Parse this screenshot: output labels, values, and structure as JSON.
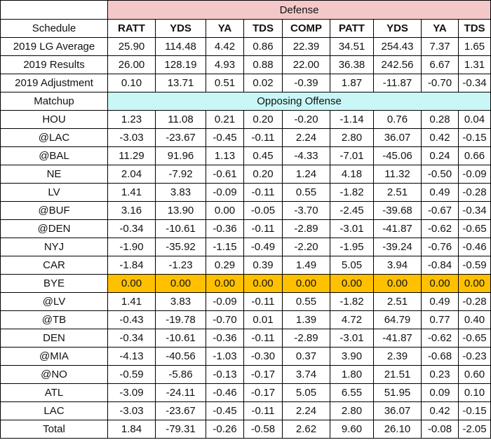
{
  "header": {
    "defense_label": "Defense",
    "schedule_label": "Schedule",
    "matchup_label": "Matchup",
    "offense_label": "Opposing Offense",
    "columns": [
      "RATT",
      "YDS",
      "YA",
      "TDS",
      "COMP",
      "PATT",
      "YDS",
      "YA",
      "TDS"
    ]
  },
  "summary_rows": [
    {
      "label": "2019 LG Average",
      "values": [
        "25.90",
        "114.48",
        "4.42",
        "0.86",
        "22.39",
        "34.51",
        "254.43",
        "7.37",
        "1.65"
      ]
    },
    {
      "label": "2019 Results",
      "values": [
        "26.00",
        "128.19",
        "4.93",
        "0.88",
        "22.00",
        "36.38",
        "242.56",
        "6.67",
        "1.31"
      ]
    },
    {
      "label": "2019 Adjustment",
      "values": [
        "0.10",
        "13.71",
        "0.51",
        "0.02",
        "-0.39",
        "1.87",
        "-11.87",
        "-0.70",
        "-0.34"
      ]
    }
  ],
  "matchups": [
    {
      "label": "HOU",
      "values": [
        "1.23",
        "11.08",
        "0.21",
        "0.20",
        "-0.20",
        "-1.14",
        "0.76",
        "0.28",
        "0.04"
      ]
    },
    {
      "label": "@LAC",
      "values": [
        "-3.03",
        "-23.67",
        "-0.45",
        "-0.11",
        "2.24",
        "2.80",
        "36.07",
        "0.42",
        "-0.15"
      ]
    },
    {
      "label": "@BAL",
      "values": [
        "11.29",
        "91.96",
        "1.13",
        "0.45",
        "-4.33",
        "-7.01",
        "-45.06",
        "0.24",
        "0.66"
      ]
    },
    {
      "label": "NE",
      "values": [
        "2.04",
        "-7.92",
        "-0.61",
        "0.20",
        "1.24",
        "4.18",
        "11.32",
        "-0.50",
        "-0.09"
      ]
    },
    {
      "label": "LV",
      "values": [
        "1.41",
        "3.83",
        "-0.09",
        "-0.11",
        "0.55",
        "-1.82",
        "2.51",
        "0.49",
        "-0.28"
      ]
    },
    {
      "label": "@BUF",
      "values": [
        "3.16",
        "13.90",
        "0.00",
        "-0.05",
        "-3.70",
        "-2.45",
        "-39.68",
        "-0.67",
        "-0.34"
      ]
    },
    {
      "label": "@DEN",
      "values": [
        "-0.34",
        "-10.61",
        "-0.36",
        "-0.11",
        "-2.89",
        "-3.01",
        "-41.87",
        "-0.62",
        "-0.65"
      ]
    },
    {
      "label": "NYJ",
      "values": [
        "-1.90",
        "-35.92",
        "-1.15",
        "-0.49",
        "-2.20",
        "-1.95",
        "-39.24",
        "-0.76",
        "-0.46"
      ]
    },
    {
      "label": "CAR",
      "values": [
        "-1.84",
        "-1.23",
        "0.29",
        "0.39",
        "1.49",
        "5.05",
        "3.94",
        "-0.84",
        "-0.59"
      ]
    },
    {
      "label": "BYE",
      "values": [
        "0.00",
        "0.00",
        "0.00",
        "0.00",
        "0.00",
        "0.00",
        "0.00",
        "0.00",
        "0.00"
      ]
    },
    {
      "label": "@LV",
      "values": [
        "1.41",
        "3.83",
        "-0.09",
        "-0.11",
        "0.55",
        "-1.82",
        "2.51",
        "0.49",
        "-0.28"
      ]
    },
    {
      "label": "@TB",
      "values": [
        "-0.43",
        "-19.78",
        "-0.70",
        "0.01",
        "1.39",
        "4.72",
        "64.79",
        "0.77",
        "0.40"
      ]
    },
    {
      "label": "DEN",
      "values": [
        "-0.34",
        "-10.61",
        "-0.36",
        "-0.11",
        "-2.89",
        "-3.01",
        "-41.87",
        "-0.62",
        "-0.65"
      ]
    },
    {
      "label": "@MIA",
      "values": [
        "-4.13",
        "-40.56",
        "-1.03",
        "-0.30",
        "0.37",
        "3.90",
        "2.39",
        "-0.68",
        "-0.23"
      ]
    },
    {
      "label": "@NO",
      "values": [
        "-0.59",
        "-5.86",
        "-0.13",
        "-0.17",
        "3.74",
        "1.80",
        "21.51",
        "0.23",
        "0.60"
      ]
    },
    {
      "label": "ATL",
      "values": [
        "-3.09",
        "-24.11",
        "-0.46",
        "-0.17",
        "5.05",
        "6.55",
        "51.95",
        "0.09",
        "0.10"
      ]
    },
    {
      "label": "LAC",
      "values": [
        "-3.03",
        "-23.67",
        "-0.45",
        "-0.11",
        "2.24",
        "2.80",
        "36.07",
        "0.42",
        "-0.15"
      ]
    },
    {
      "label": "Total",
      "values": [
        "1.84",
        "-79.31",
        "-0.26",
        "-0.58",
        "2.62",
        "9.60",
        "26.10",
        "-0.08",
        "-2.05"
      ]
    }
  ],
  "colors": {
    "defense_header": "#f4c8c8",
    "offense_header": "#c9f7f7",
    "bye_highlight": "#ffc000"
  }
}
